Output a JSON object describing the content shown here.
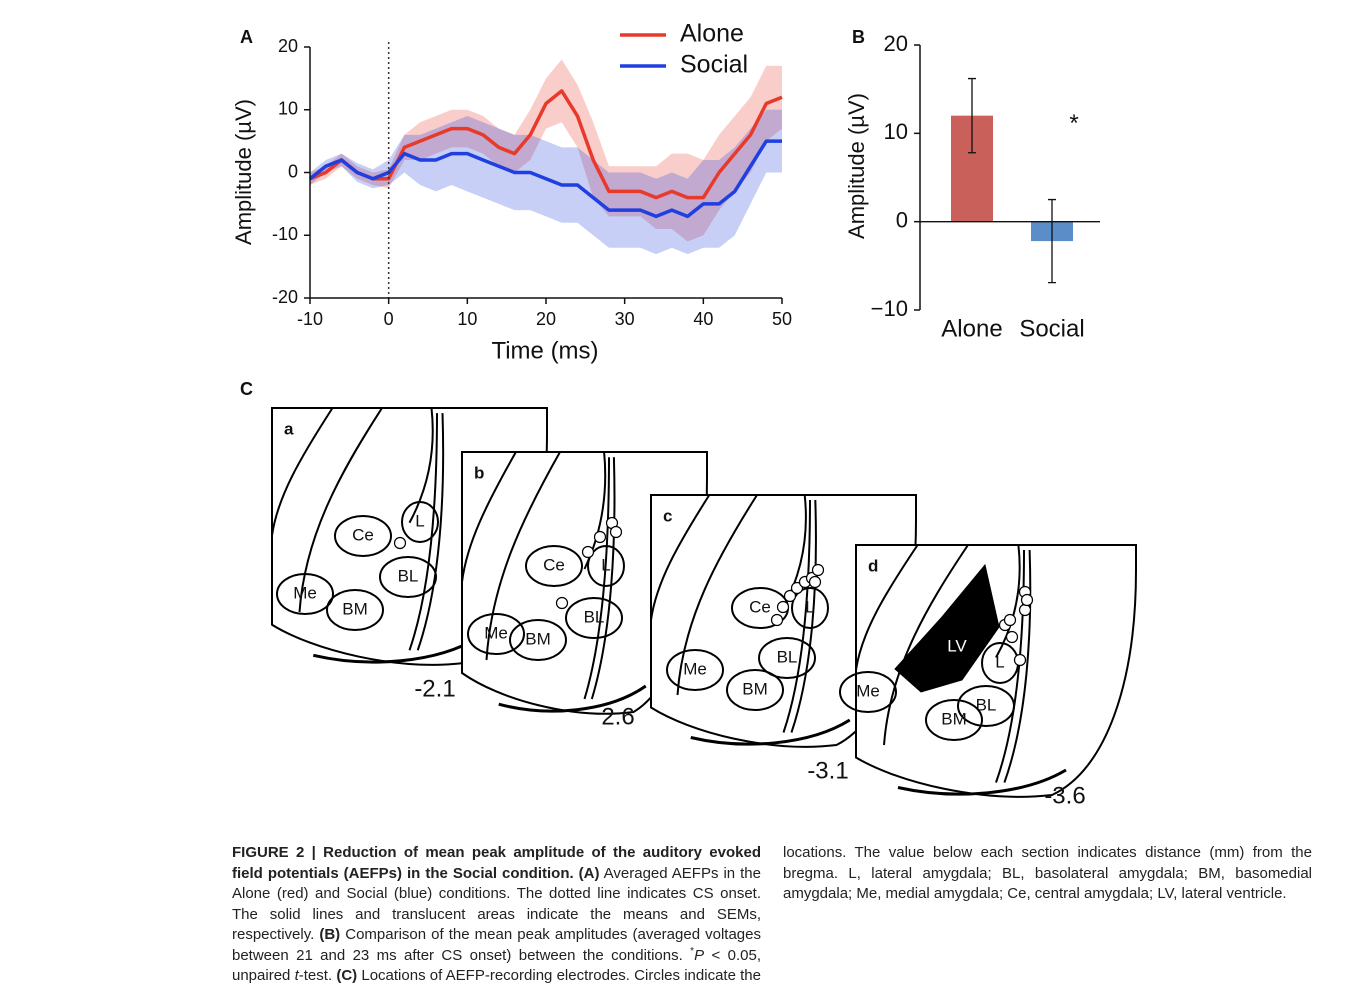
{
  "chart_data": [
    {
      "type": "line",
      "panel": "A",
      "x": [
        -10,
        -8,
        -6,
        -4,
        -2,
        0,
        2,
        4,
        6,
        8,
        10,
        12,
        14,
        16,
        18,
        20,
        22,
        24,
        26,
        28,
        30,
        32,
        34,
        36,
        38,
        40,
        42,
        44,
        46,
        48,
        50
      ],
      "series": [
        {
          "name": "Alone",
          "color": "#e8392a",
          "values": [
            -1,
            0,
            2,
            0,
            -1,
            -1,
            4,
            5,
            6,
            7,
            7,
            6,
            4,
            3,
            6,
            11,
            13,
            9,
            2,
            -3,
            -3,
            -3,
            -4,
            -3,
            -4,
            -4,
            0,
            3,
            6,
            11,
            12
          ],
          "errors": [
            1,
            1,
            1,
            1,
            1,
            1.5,
            2,
            3,
            3,
            3,
            3,
            3,
            3,
            3,
            4,
            4,
            5,
            5,
            6,
            4,
            4,
            4,
            5,
            6,
            7,
            6,
            6,
            6,
            6,
            6,
            5
          ]
        },
        {
          "name": "Social",
          "color": "#1f3fe0",
          "values": [
            -1,
            1,
            2,
            0,
            -1,
            0,
            3,
            2,
            2,
            3,
            3,
            2,
            1,
            0,
            0,
            -1,
            -2,
            -2,
            -4,
            -6,
            -6,
            -6,
            -7,
            -6,
            -7,
            -5,
            -5,
            -3,
            1,
            5,
            5
          ],
          "errors": [
            1,
            1,
            1,
            1.5,
            1.5,
            2,
            3,
            4,
            5,
            5,
            6,
            6,
            6,
            6,
            6,
            6,
            6,
            6,
            6,
            6,
            6,
            6,
            6,
            6,
            6,
            7,
            7,
            7,
            6,
            5,
            5
          ]
        }
      ],
      "xlim": [
        -10,
        50
      ],
      "xticks": [
        -10,
        0,
        10,
        20,
        30,
        40,
        50
      ],
      "ylim": [
        -20,
        20
      ],
      "yticks": [
        -20,
        -10,
        0,
        10,
        20
      ],
      "xlabel": "Time (ms)",
      "ylabel": "Amplitude  (µV)",
      "marker_x": 0,
      "legend": "upper right"
    },
    {
      "type": "bar",
      "panel": "B",
      "categories": [
        "Alone",
        "Social"
      ],
      "values": [
        12,
        -2.2
      ],
      "errors": [
        4.2,
        4.7
      ],
      "colors": [
        "#c9605a",
        "#5b8ec9"
      ],
      "ylim": [
        -10,
        20
      ],
      "yticks": [
        {
          "value": -10,
          "label": "−10"
        },
        0,
        10,
        20
      ],
      "ylabel": "Amplitude (µV)",
      "annotation": "*"
    }
  ],
  "diagram": {
    "panel": "C",
    "sections": [
      {
        "letter": "a",
        "distance": "-2.1",
        "regions": [
          "Ce",
          "L",
          "BL",
          "Me",
          "BM"
        ]
      },
      {
        "letter": "b",
        "distance": "2.6",
        "regions": [
          "Ce",
          "L",
          "BL",
          "Me",
          "BM"
        ]
      },
      {
        "letter": "c",
        "distance": "-3.1",
        "regions": [
          "Ce",
          "L",
          "BL",
          "Me",
          "BM"
        ]
      },
      {
        "letter": "d",
        "distance": "-3.6",
        "regions": [
          "LV",
          "L",
          "BL",
          "Me",
          "BM"
        ]
      }
    ]
  },
  "caption": {
    "runs": [
      {
        "text": "FIGURE 2 | Reduction of mean peak amplitude of the auditory evoked field potentials (AEFPs) in the Social condition. (A)",
        "style": "bold"
      },
      {
        "text": " Averaged AEFPs in the Alone (red) and Social (blue) conditions. The dotted line indicates CS onset. The solid lines and translucent areas indicate the means and SEMs, respectively. ",
        "style": "normal"
      },
      {
        "text": "(B)",
        "style": "bold"
      },
      {
        "text": " Comparison of the mean peak amplitudes (averaged voltages between 21 and 23 ms after CS onset) between the conditions. ",
        "style": "normal"
      },
      {
        "text": "*",
        "style": "sup"
      },
      {
        "text": "P",
        "style": "italic"
      },
      {
        "text": " < 0.05, unpaired ",
        "style": "normal"
      },
      {
        "text": "t",
        "style": "italic"
      },
      {
        "text": "-test. ",
        "style": "normal"
      },
      {
        "text": "(C)",
        "style": "bold"
      },
      {
        "text": " Locations of AEFP-recording electrodes. Circles indicate the locations. The value below each section indicates distance (mm) from the bregma. L, lateral amygdala; BL, basolateral amygdala; BM, basomedial amygdala; Me, medial amygdala; Ce, central amygdala; LV, lateral ventricle.",
        "style": "normal"
      }
    ]
  }
}
